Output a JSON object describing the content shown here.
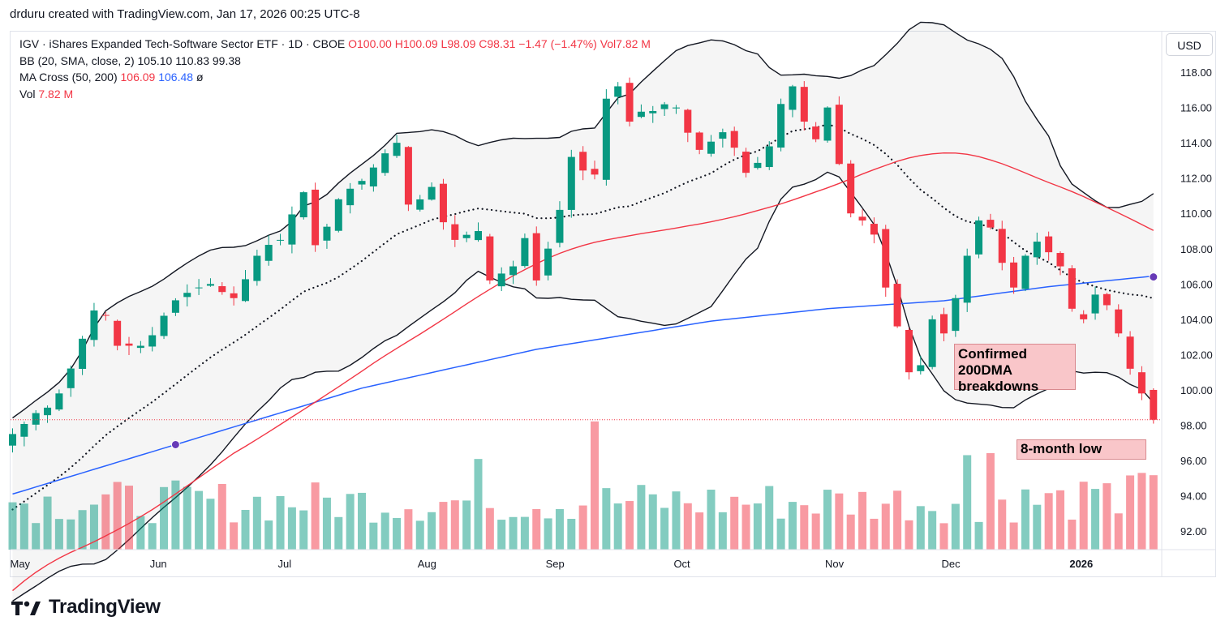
{
  "header": {
    "credit": "drduru created with TradingView.com, Jan 17, 2026 00:25 UTC-8"
  },
  "legend": {
    "symbol": "IGV · iShares Expanded Tech-Software Sector ETF · 1D · CBOE",
    "ohlc": "O100.00 H100.09 L98.09 C98.31 −1.47 (−1.47%)",
    "vol_inline": "Vol7.82 M",
    "bb_label": "BB (20, SMA, close, 2)",
    "bb_values": "105.10 110.83 99.38",
    "ma_label": "MA Cross (50, 200)",
    "ma50_value": "106.09",
    "ma200_value": "106.48",
    "ma_suffix": "ø",
    "vol_label": "Vol",
    "vol_value": "7.82 M"
  },
  "currency_button": "USD",
  "brand": "TradingView",
  "annotations": {
    "breakdown": "Confirmed 200DMA breakdowns",
    "low": "8-month low"
  },
  "colors": {
    "up": "#089981",
    "down": "#f23645",
    "ma50": "#f23645",
    "ma200": "#2962ff",
    "bb": "#131722"
  },
  "chart_data": {
    "type": "candlestick",
    "title": "IGV · iShares Expanded Tech-Software Sector ETF · 1D · CBOE",
    "price_axis_ticks": [
      "118.00",
      "116.00",
      "114.00",
      "112.00",
      "110.00",
      "108.00",
      "106.00",
      "104.00",
      "102.00",
      "100.00",
      "98.00",
      "96.00",
      "94.00",
      "92.00"
    ],
    "price_axis_values": [
      118,
      116,
      114,
      112,
      110,
      108,
      106,
      104,
      102,
      100,
      98,
      96,
      94,
      92
    ],
    "ylim": [
      90.95,
      120.3
    ],
    "month_labels": [
      "May",
      "Jun",
      "Jul",
      "Aug",
      "Sep",
      "Oct",
      "Nov",
      "Dec",
      "2026"
    ],
    "month_start_index": [
      0,
      12,
      23,
      35,
      46,
      57,
      70,
      80,
      91
    ],
    "last_price": 98.31,
    "anchors": [
      {
        "i": 0,
        "p": 97.5
      },
      {
        "i": 4,
        "p": 99.8
      },
      {
        "i": 7,
        "p": 104.5
      },
      {
        "i": 8,
        "p": 104.2
      },
      {
        "i": 9,
        "p": 102.5
      },
      {
        "i": 11,
        "p": 102.5
      },
      {
        "i": 13,
        "p": 104.2
      },
      {
        "i": 15,
        "p": 105.5
      },
      {
        "i": 17,
        "p": 106.0
      },
      {
        "i": 19,
        "p": 105.2
      },
      {
        "i": 21,
        "p": 107.6
      },
      {
        "i": 23,
        "p": 108.5
      },
      {
        "i": 25,
        "p": 111.2
      },
      {
        "i": 26,
        "p": 108.2
      },
      {
        "i": 28,
        "p": 110.8
      },
      {
        "i": 31,
        "p": 112.6
      },
      {
        "i": 33,
        "p": 114.0
      },
      {
        "i": 34,
        "p": 110.5
      },
      {
        "i": 36,
        "p": 111.5
      },
      {
        "i": 37,
        "p": 109.5
      },
      {
        "i": 38,
        "p": 108.5
      },
      {
        "i": 40,
        "p": 109.0
      },
      {
        "i": 41,
        "p": 106.2
      },
      {
        "i": 43,
        "p": 107.0
      },
      {
        "i": 44,
        "p": 108.6
      },
      {
        "i": 45,
        "p": 106.2
      },
      {
        "i": 47,
        "p": 110.2
      },
      {
        "i": 48,
        "p": 113.2
      },
      {
        "i": 50,
        "p": 112.2
      },
      {
        "i": 51,
        "p": 116.5
      },
      {
        "i": 52,
        "p": 117.2
      },
      {
        "i": 53,
        "p": 115.2
      },
      {
        "i": 55,
        "p": 115.8
      },
      {
        "i": 57,
        "p": 116.0
      },
      {
        "i": 59,
        "p": 113.6
      },
      {
        "i": 61,
        "p": 114.6
      },
      {
        "i": 63,
        "p": 112.3
      },
      {
        "i": 65,
        "p": 113.8
      },
      {
        "i": 66,
        "p": 116.2
      },
      {
        "i": 67,
        "p": 117.2
      },
      {
        "i": 68,
        "p": 115.2
      },
      {
        "i": 69,
        "p": 114.2
      },
      {
        "i": 70,
        "p": 116.0
      },
      {
        "i": 71,
        "p": 112.8
      },
      {
        "i": 72,
        "p": 110.0
      },
      {
        "i": 73,
        "p": 109.6
      },
      {
        "i": 74,
        "p": 108.8
      },
      {
        "i": 75,
        "p": 105.8
      },
      {
        "i": 76,
        "p": 103.6
      },
      {
        "i": 77,
        "p": 101.0
      },
      {
        "i": 78,
        "p": 101.4
      },
      {
        "i": 79,
        "p": 104.0
      },
      {
        "i": 80,
        "p": 103.2
      },
      {
        "i": 81,
        "p": 105.2
      },
      {
        "i": 82,
        "p": 107.6
      },
      {
        "i": 83,
        "p": 109.6
      },
      {
        "i": 84,
        "p": 109.2
      },
      {
        "i": 85,
        "p": 107.2
      },
      {
        "i": 86,
        "p": 105.8
      },
      {
        "i": 87,
        "p": 107.6
      },
      {
        "i": 88,
        "p": 108.4
      },
      {
        "i": 89,
        "p": 107.8
      },
      {
        "i": 90,
        "p": 107.0
      },
      {
        "i": 91,
        "p": 104.6
      },
      {
        "i": 92,
        "p": 104.0
      },
      {
        "i": 93,
        "p": 105.4
      },
      {
        "i": 94,
        "p": 104.8
      },
      {
        "i": 95,
        "p": 103.2
      },
      {
        "i": 96,
        "p": 101.2
      },
      {
        "i": 97,
        "p": 99.8
      },
      {
        "i": 98,
        "p": 98.31
      }
    ],
    "ma200_points": [
      {
        "i": 0,
        "p": 94.1
      },
      {
        "i": 14,
        "p": 96.9
      },
      {
        "i": 30,
        "p": 100.1
      },
      {
        "i": 45,
        "p": 102.3
      },
      {
        "i": 60,
        "p": 103.9
      },
      {
        "i": 70,
        "p": 104.6
      },
      {
        "i": 80,
        "p": 105.05
      },
      {
        "i": 89,
        "p": 105.85
      },
      {
        "i": 98,
        "p": 106.45
      }
    ],
    "ma50_start_index": 8,
    "bb_period": 20,
    "bb_mult": 2,
    "ma_cross_points": [
      {
        "i": 14,
        "p": 96.9
      },
      {
        "i": 98,
        "p": 106.4
      }
    ],
    "volume_ymax_millions": 8.0,
    "volume_baseline": 1.6
  }
}
